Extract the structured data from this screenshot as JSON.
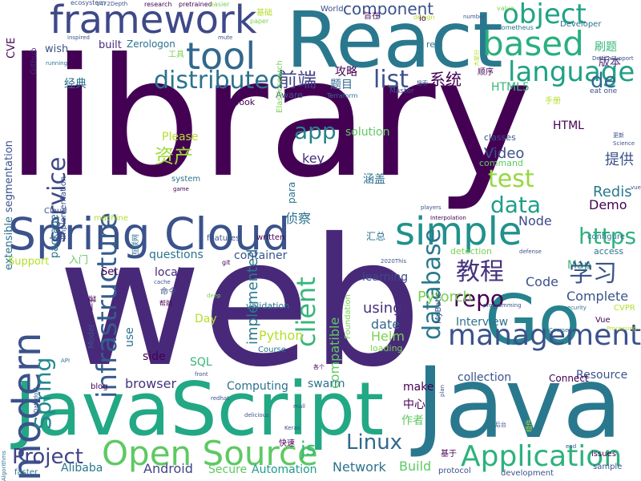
{
  "words": [
    {
      "text": "library",
      "color": "#440154"
    },
    {
      "text": "web",
      "color": "#482979"
    },
    {
      "text": "React",
      "color": "#2a788e"
    },
    {
      "text": "Java",
      "color": "#2a788e"
    },
    {
      "text": "JavaScript",
      "color": "#22a884"
    },
    {
      "text": "Spring Cloud",
      "color": "#3b528b"
    },
    {
      "text": "Go",
      "color": "#26828e"
    },
    {
      "text": "framework",
      "color": "#3e4989"
    },
    {
      "text": "tool",
      "color": "#31688e"
    },
    {
      "text": "based",
      "color": "#29af7f"
    },
    {
      "text": "simple",
      "color": "#21918c"
    },
    {
      "text": "modern",
      "color": "#3b528b"
    },
    {
      "text": "Open Source",
      "color": "#5ec962"
    },
    {
      "text": "Application",
      "color": "#2db27d"
    },
    {
      "text": "management",
      "color": "#3b528b"
    },
    {
      "text": "distributed",
      "color": "#2c728e"
    },
    {
      "text": "language",
      "color": "#1fa187"
    },
    {
      "text": "object",
      "color": "#20a386"
    },
    {
      "text": "infrastructure",
      "color": "#365c8d"
    },
    {
      "text": "service",
      "color": "#3e4989"
    },
    {
      "text": "client",
      "color": "#35b779"
    },
    {
      "text": "database",
      "color": "#2a788e"
    },
    {
      "text": "list",
      "color": "#3b528b"
    },
    {
      "text": "test",
      "color": "#95d840"
    },
    {
      "text": "data",
      "color": "#1f9e89"
    },
    {
      "text": "https",
      "color": "#2db27d"
    },
    {
      "text": "repo",
      "color": "#440154"
    },
    {
      "text": "Spring",
      "color": "#23888e"
    },
    {
      "text": "Project",
      "color": "#414487"
    },
    {
      "text": "Linux",
      "color": "#31688e"
    },
    {
      "text": "component",
      "color": "#3b528b"
    },
    {
      "text": "de",
      "color": "#31688e"
    },
    {
      "text": "app",
      "color": "#26828e"
    },
    {
      "text": "Pytorch",
      "color": "#7ad151"
    },
    {
      "text": "Python",
      "color": "#b5de2b"
    },
    {
      "text": "Helm",
      "color": "#7ad151"
    },
    {
      "text": "using",
      "color": "#46337e"
    },
    {
      "text": "date",
      "color": "#31688e"
    },
    {
      "text": "js",
      "color": "#35b779"
    },
    {
      "text": "Android",
      "color": "#414487"
    },
    {
      "text": "Network",
      "color": "#2c728e"
    },
    {
      "text": "Build",
      "color": "#5ec962"
    },
    {
      "text": "Alibaba",
      "color": "#2a788e"
    },
    {
      "text": "Automation",
      "color": "#1f9e89"
    },
    {
      "text": "Secure",
      "color": "#5ec962"
    },
    {
      "text": "implemented",
      "color": "#2a788e"
    },
    {
      "text": "compatible",
      "color": "#5ec962"
    },
    {
      "text": "Video",
      "color": "#3b528b"
    },
    {
      "text": "Redis",
      "color": "#2a788e"
    },
    {
      "text": "Demo",
      "color": "#440154"
    },
    {
      "text": "Node",
      "color": "#3e4989"
    },
    {
      "text": "Code",
      "color": "#3b528b"
    },
    {
      "text": "Complete",
      "color": "#3b528b"
    },
    {
      "text": "Interview",
      "color": "#2c728e"
    },
    {
      "text": "collection",
      "color": "#3b528b"
    },
    {
      "text": "Resource",
      "color": "#3b528b"
    },
    {
      "text": "Computing",
      "color": "#2c728e"
    },
    {
      "text": "swarm",
      "color": "#2c728e"
    },
    {
      "text": "browser",
      "color": "#46337e"
    },
    {
      "text": "make",
      "color": "#440154"
    },
    {
      "text": "SQL",
      "color": "#35b779"
    },
    {
      "text": "Day",
      "color": "#b5de2b"
    },
    {
      "text": "use",
      "color": "#2c728e"
    },
    {
      "text": "side",
      "color": "#440154"
    },
    {
      "text": "container",
      "color": "#3b528b"
    },
    {
      "text": "questions",
      "color": "#2c728e"
    },
    {
      "text": "learning",
      "color": "#3e4989"
    },
    {
      "text": "local",
      "color": "#482979"
    },
    {
      "text": "solution",
      "color": "#5ec962"
    },
    {
      "text": "key",
      "color": "#472d7b"
    },
    {
      "text": "Please",
      "color": "#b5de2b"
    },
    {
      "text": "Map",
      "color": "#35b779"
    },
    {
      "text": "HTML",
      "color": "#440154"
    },
    {
      "text": "HTML5",
      "color": "#35b779"
    },
    {
      "text": "classes",
      "color": "#3b528b"
    },
    {
      "text": "command",
      "color": "#5ec962"
    },
    {
      "text": "教程",
      "color": "#46337e"
    },
    {
      "text": "学习",
      "color": "#3b528b"
    },
    {
      "text": "前端",
      "color": "#414487"
    },
    {
      "text": "资产",
      "color": "#a0da39"
    },
    {
      "text": "系统",
      "color": "#440154"
    },
    {
      "text": "提供",
      "color": "#3b528b"
    },
    {
      "text": "刷题",
      "color": "#35b779"
    },
    {
      "text": "侦察",
      "color": "#2c728e"
    },
    {
      "text": "攻略",
      "color": "#440154"
    },
    {
      "text": "题目",
      "color": "#31688e"
    },
    {
      "text": "经典",
      "color": "#2c728e"
    },
    {
      "text": "涵盖",
      "color": "#2c728e"
    },
    {
      "text": "版本",
      "color": "#472d7b"
    },
    {
      "text": "中心",
      "color": "#440154"
    },
    {
      "text": "作者",
      "color": "#5ec962"
    },
    {
      "text": "汇总",
      "color": "#2c728e"
    },
    {
      "text": "入门",
      "color": "#5ec962"
    },
    {
      "text": "segmentation",
      "color": "#3b528b"
    },
    {
      "text": "extensible",
      "color": "#2c728e"
    },
    {
      "text": "package",
      "color": "#2c728e"
    },
    {
      "text": "implementation",
      "color": "#3b528b"
    },
    {
      "text": "Support",
      "color": "#b5de2b"
    },
    {
      "text": "Set",
      "color": "#440154"
    },
    {
      "text": "Model",
      "color": "#3b528b"
    },
    {
      "text": "CVE",
      "color": "#440154"
    },
    {
      "text": "wish",
      "color": "#3b528b"
    },
    {
      "text": "built",
      "color": "#472d7b"
    },
    {
      "text": "Zerologon",
      "color": "#2c728e"
    },
    {
      "text": "Github",
      "color": "#482979"
    },
    {
      "text": "gitbook",
      "color": "#440154"
    },
    {
      "text": "Aware",
      "color": "#3b528b"
    },
    {
      "text": "real",
      "color": "#2c728e"
    },
    {
      "text": "Master",
      "color": "#3b528b"
    },
    {
      "text": "validation",
      "color": "#2c728e"
    },
    {
      "text": "Course",
      "color": "#2c728e"
    },
    {
      "text": "loading",
      "color": "#7ad151"
    },
    {
      "text": "detection",
      "color": "#7ad151"
    },
    {
      "text": "access",
      "color": "#2c728e"
    },
    {
      "text": "configure",
      "color": "#2c728e"
    },
    {
      "text": "features",
      "color": "#3b528b"
    },
    {
      "text": "written",
      "color": "#440154"
    },
    {
      "text": "machine",
      "color": "#b5de2b"
    },
    {
      "text": "Cloud",
      "color": "#3b528b"
    },
    {
      "text": "system",
      "color": "#2c728e"
    },
    {
      "text": "ecosystem",
      "color": "#3b528b"
    },
    {
      "text": "research",
      "color": "#440154"
    },
    {
      "text": "pretrained",
      "color": "#440154"
    },
    {
      "text": "easier",
      "color": "#7ad151"
    },
    {
      "text": "World",
      "color": "#3b528b"
    },
    {
      "text": "paper",
      "color": "#7ad151"
    },
    {
      "text": "value",
      "color": "#7ad151"
    },
    {
      "text": "number",
      "color": "#3b528b"
    },
    {
      "text": "design",
      "color": "#b5de2b"
    },
    {
      "text": "Developer",
      "color": "#2c728e"
    },
    {
      "text": "Prometheus",
      "color": "#2c728e"
    },
    {
      "text": "DeviceSupport",
      "color": "#3b528b"
    },
    {
      "text": "eat one",
      "color": "#3b528b"
    },
    {
      "text": "Science",
      "color": "#3b528b"
    },
    {
      "text": "vue",
      "color": "#3b528b"
    },
    {
      "text": "Vue",
      "color": "#440154"
    },
    {
      "text": "CVPR",
      "color": "#b5de2b"
    },
    {
      "text": "security",
      "color": "#2c728e"
    },
    {
      "text": "Processing",
      "color": "#b5de2b"
    },
    {
      "text": "programming",
      "color": "#3b528b"
    },
    {
      "text": "CourseA",
      "color": "#2c728e"
    },
    {
      "text": "defense",
      "color": "#3b528b"
    },
    {
      "text": "Interpolation",
      "color": "#440154"
    },
    {
      "text": "players",
      "color": "#3b528b"
    },
    {
      "text": "issues",
      "color": "#440154"
    },
    {
      "text": "development",
      "color": "#3b528b"
    },
    {
      "text": "sample",
      "color": "#3b528b"
    },
    {
      "text": "end",
      "color": "#3b528b"
    },
    {
      "text": "plan",
      "color": "#3b528b"
    },
    {
      "text": "protocol",
      "color": "#3b528b"
    },
    {
      "text": "faster",
      "color": "#2c728e"
    },
    {
      "text": "Algorithms",
      "color": "#2c728e"
    },
    {
      "text": "Datadog",
      "color": "#3b528b"
    },
    {
      "text": "blog",
      "color": "#440154"
    },
    {
      "text": "API",
      "color": "#2c728e"
    },
    {
      "text": "front",
      "color": "#3b528b"
    },
    {
      "text": "redhat",
      "color": "#3b528b"
    },
    {
      "text": "delicious",
      "color": "#3b528b"
    },
    {
      "text": "Keras",
      "color": "#3b528b"
    },
    {
      "text": "mall",
      "color": "#3b528b"
    },
    {
      "text": "Connect",
      "color": "#440154"
    },
    {
      "text": "deep",
      "color": "#7ad151"
    },
    {
      "text": "cache",
      "color": "#3b528b"
    },
    {
      "text": "Foundation",
      "color": "#7ad151"
    },
    {
      "text": "MyBatis",
      "color": "#3b528b"
    },
    {
      "text": "Elasticsearch",
      "color": "#7ad151"
    },
    {
      "text": "Terraform",
      "color": "#2c728e"
    },
    {
      "text": "running",
      "color": "#2c728e"
    },
    {
      "text": "inspired",
      "color": "#3b528b"
    },
    {
      "text": "mute",
      "color": "#3b528b"
    },
    {
      "text": "game",
      "color": "#440154"
    },
    {
      "text": "git",
      "color": "#440154"
    },
    {
      "text": "para",
      "color": "#2c728e"
    },
    {
      "text": "1472Depth",
      "color": "#3b528b"
    },
    {
      "text": "2020This",
      "color": "#3b528b"
    },
    {
      "text": "io",
      "color": "#440154"
    },
    {
      "text": "工具",
      "color": "#7ad151"
    },
    {
      "text": "基础",
      "color": "#b5de2b"
    },
    {
      "text": "旨在",
      "color": "#440154"
    },
    {
      "text": "顺序",
      "color": "#440154"
    },
    {
      "text": "手册",
      "color": "#b5de2b"
    },
    {
      "text": "命令",
      "color": "#3b528b"
    },
    {
      "text": "帮助",
      "color": "#440154"
    },
    {
      "text": "基于",
      "color": "#440154"
    },
    {
      "text": "快速",
      "color": "#440154"
    },
    {
      "text": "一套",
      "color": "#440154"
    },
    {
      "text": "互联网",
      "color": "#2c728e"
    },
    {
      "text": "大部分",
      "color": "#b5de2b"
    },
    {
      "text": "更新",
      "color": "#3b528b"
    },
    {
      "text": "搜索",
      "color": "#3b528b"
    },
    {
      "text": "组件",
      "color": "#b5de2b"
    },
    {
      "text": "后台",
      "color": "#3b528b"
    },
    {
      "text": "各个",
      "color": "#440154"
    }
  ]
}
